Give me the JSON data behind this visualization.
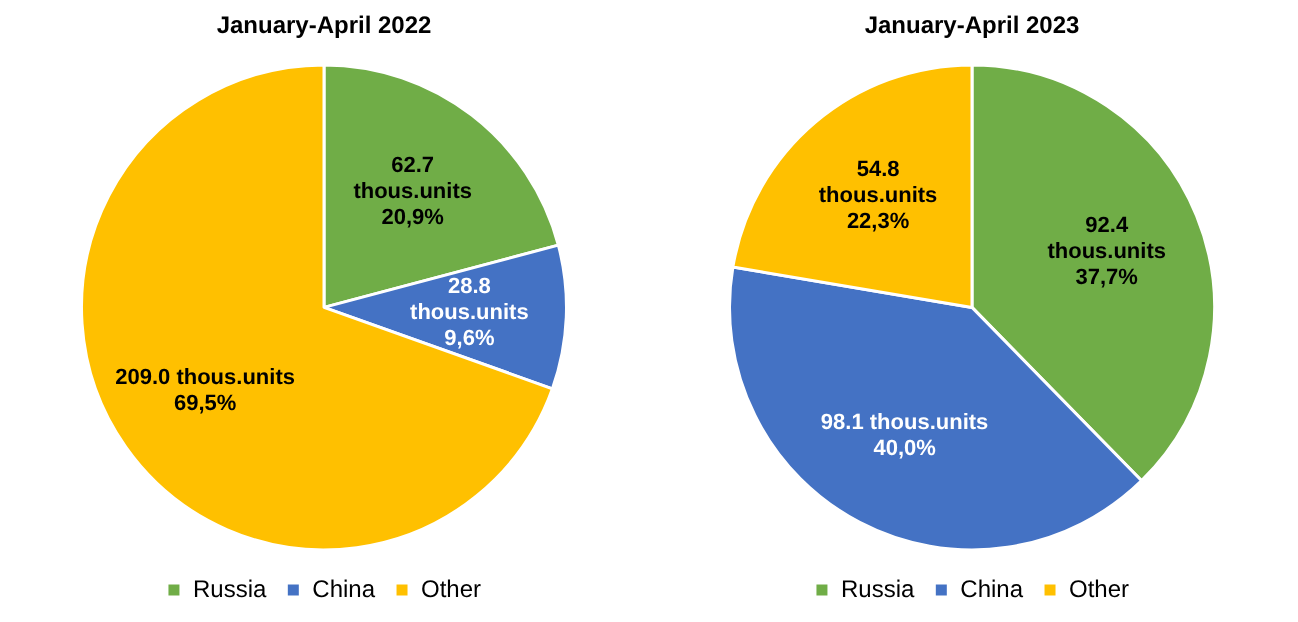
{
  "chart_data": [
    {
      "type": "pie",
      "title": "January-April 2022",
      "categories": [
        "Russia",
        "China",
        "Other"
      ],
      "values": [
        62.7,
        28.8,
        209.0
      ],
      "colors": [
        "#70ad47",
        "#4472c4",
        "#ffc000"
      ],
      "value_labels": [
        "62.7\nthous.units\n20,9%",
        "28.8\nthous.units\n9,6%",
        "209.0 thous.units\n69,5%"
      ],
      "legend": "bottom"
    },
    {
      "type": "pie",
      "title": "January-April 2023",
      "categories": [
        "Russia",
        "China",
        "Other"
      ],
      "values": [
        92.4,
        98.1,
        54.8
      ],
      "colors": [
        "#70ad47",
        "#4472c4",
        "#ffc000"
      ],
      "value_labels": [
        "92.4\nthous.units\n37,7%",
        "98.1 thous.units\n40,0%",
        "54.8\nthous.units\n22,3%"
      ],
      "legend": "bottom"
    }
  ]
}
